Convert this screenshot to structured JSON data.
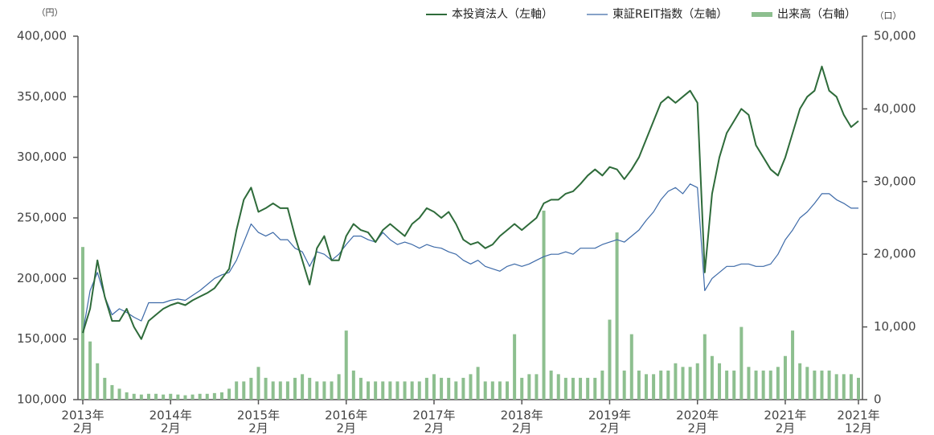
{
  "chart_data": {
    "type": "line",
    "y_unit": "（円）",
    "y2_unit": "（口）",
    "x": [
      "2013-02",
      "2013-03",
      "2013-04",
      "2013-05",
      "2013-06",
      "2013-07",
      "2013-08",
      "2013-09",
      "2013-10",
      "2013-11",
      "2013-12",
      "2014-01",
      "2014-02",
      "2014-03",
      "2014-04",
      "2014-05",
      "2014-06",
      "2014-07",
      "2014-08",
      "2014-09",
      "2014-10",
      "2014-11",
      "2014-12",
      "2015-01",
      "2015-02",
      "2015-03",
      "2015-04",
      "2015-05",
      "2015-06",
      "2015-07",
      "2015-08",
      "2015-09",
      "2015-10",
      "2015-11",
      "2015-12",
      "2016-01",
      "2016-02",
      "2016-03",
      "2016-04",
      "2016-05",
      "2016-06",
      "2016-07",
      "2016-08",
      "2016-09",
      "2016-10",
      "2016-11",
      "2016-12",
      "2017-01",
      "2017-02",
      "2017-03",
      "2017-04",
      "2017-05",
      "2017-06",
      "2017-07",
      "2017-08",
      "2017-09",
      "2017-10",
      "2017-11",
      "2017-12",
      "2018-01",
      "2018-02",
      "2018-03",
      "2018-04",
      "2018-05",
      "2018-06",
      "2018-07",
      "2018-08",
      "2018-09",
      "2018-10",
      "2018-11",
      "2018-12",
      "2019-01",
      "2019-02",
      "2019-03",
      "2019-04",
      "2019-05",
      "2019-06",
      "2019-07",
      "2019-08",
      "2019-09",
      "2019-10",
      "2019-11",
      "2019-12",
      "2020-01",
      "2020-02",
      "2020-03",
      "2020-04",
      "2020-05",
      "2020-06",
      "2020-07",
      "2020-08",
      "2020-09",
      "2020-10",
      "2020-11",
      "2020-12",
      "2021-01",
      "2021-02",
      "2021-03",
      "2021-04",
      "2021-05",
      "2021-06",
      "2021-07",
      "2021-08",
      "2021-09",
      "2021-10",
      "2021-11",
      "2021-12"
    ],
    "xlim": [
      "2013-02",
      "2021-12"
    ],
    "xticks": [
      {
        "value": "2013-02",
        "label": [
          "2013年",
          "2月"
        ]
      },
      {
        "value": "2014-02",
        "label": [
          "2014年",
          "2月"
        ]
      },
      {
        "value": "2015-02",
        "label": [
          "2015年",
          "2月"
        ]
      },
      {
        "value": "2016-02",
        "label": [
          "2016年",
          "2月"
        ]
      },
      {
        "value": "2017-02",
        "label": [
          "2017年",
          "2月"
        ]
      },
      {
        "value": "2018-02",
        "label": [
          "2018年",
          "2月"
        ]
      },
      {
        "value": "2019-02",
        "label": [
          "2019年",
          "2月"
        ]
      },
      {
        "value": "2020-02",
        "label": [
          "2020年",
          "2月"
        ]
      },
      {
        "value": "2021-02",
        "label": [
          "2021年",
          "2月"
        ]
      },
      {
        "value": "2021-12",
        "label": [
          "2021年",
          "12月"
        ]
      }
    ],
    "ylim": [
      100000,
      400000
    ],
    "yticks": [
      {
        "value": 100000,
        "label": "100,000"
      },
      {
        "value": 150000,
        "label": "150,000"
      },
      {
        "value": 200000,
        "label": "200,000"
      },
      {
        "value": 250000,
        "label": "250,000"
      },
      {
        "value": 300000,
        "label": "300,000"
      },
      {
        "value": 350000,
        "label": "350,000"
      },
      {
        "value": 400000,
        "label": "400,000"
      }
    ],
    "y2lim": [
      0,
      50000
    ],
    "y2ticks": [
      0,
      {
        "value": 10000,
        "label": "10,000"
      },
      {
        "value": 20000,
        "label": "20,000"
      },
      {
        "value": 30000,
        "label": "30,000"
      },
      {
        "value": 40000,
        "label": "40,000"
      },
      {
        "value": 50000,
        "label": "50,000"
      }
    ],
    "legend": "top-right",
    "series": [
      {
        "name": "本投資法人（左軸）",
        "color": "#2e6b3a",
        "type": "line",
        "values": [
          155000,
          175000,
          215000,
          185000,
          165000,
          165000,
          175000,
          160000,
          150000,
          165000,
          170000,
          175000,
          178000,
          180000,
          178000,
          182000,
          185000,
          188000,
          192000,
          200000,
          208000,
          240000,
          265000,
          275000,
          255000,
          258000,
          262000,
          258000,
          258000,
          235000,
          215000,
          195000,
          225000,
          235000,
          215000,
          215000,
          235000,
          245000,
          240000,
          238000,
          230000,
          240000,
          245000,
          240000,
          235000,
          245000,
          250000,
          258000,
          255000,
          250000,
          255000,
          245000,
          232000,
          228000,
          230000,
          225000,
          228000,
          235000,
          240000,
          245000,
          240000,
          245000,
          250000,
          262000,
          265000,
          265000,
          270000,
          272000,
          278000,
          285000,
          290000,
          285000,
          292000,
          290000,
          282000,
          290000,
          300000,
          315000,
          330000,
          345000,
          350000,
          345000,
          350000,
          355000,
          345000,
          205000,
          270000,
          300000,
          320000,
          330000,
          340000,
          335000,
          310000,
          300000,
          290000,
          285000,
          300000,
          320000,
          340000,
          350000,
          355000,
          375000,
          355000,
          350000,
          335000,
          325000,
          330000
        ]
      },
      {
        "name": "東証REIT指数（左軸）",
        "color": "#3d6aa8",
        "type": "line",
        "values": [
          155000,
          190000,
          205000,
          185000,
          170000,
          175000,
          172000,
          168000,
          165000,
          180000,
          180000,
          180000,
          182000,
          183000,
          182000,
          186000,
          190000,
          195000,
          200000,
          203000,
          205000,
          215000,
          230000,
          245000,
          238000,
          235000,
          238000,
          232000,
          232000,
          225000,
          222000,
          210000,
          222000,
          220000,
          215000,
          220000,
          228000,
          235000,
          235000,
          232000,
          230000,
          238000,
          232000,
          228000,
          230000,
          228000,
          225000,
          228000,
          226000,
          225000,
          222000,
          220000,
          215000,
          212000,
          215000,
          210000,
          208000,
          206000,
          210000,
          212000,
          210000,
          212000,
          215000,
          218000,
          220000,
          220000,
          222000,
          220000,
          225000,
          225000,
          225000,
          228000,
          230000,
          232000,
          230000,
          235000,
          240000,
          248000,
          255000,
          265000,
          272000,
          275000,
          270000,
          278000,
          275000,
          190000,
          200000,
          205000,
          210000,
          210000,
          212000,
          212000,
          210000,
          210000,
          212000,
          220000,
          232000,
          240000,
          250000,
          255000,
          262000,
          270000,
          270000,
          265000,
          262000,
          258000,
          258000
        ]
      },
      {
        "name": "出来高（右軸）",
        "color": "#8dbf8f",
        "type": "bar",
        "axis": "y2",
        "values": [
          21000,
          8000,
          5000,
          3000,
          2000,
          1500,
          1000,
          800,
          700,
          800,
          800,
          700,
          800,
          700,
          600,
          700,
          800,
          800,
          900,
          1000,
          1500,
          2500,
          2500,
          3000,
          4500,
          3000,
          2500,
          2500,
          2500,
          3000,
          3500,
          3000,
          2500,
          2500,
          2500,
          3500,
          9500,
          4000,
          3000,
          2500,
          2500,
          2500,
          2500,
          2500,
          2500,
          2500,
          2500,
          3000,
          3500,
          3000,
          3000,
          2500,
          3000,
          3500,
          4500,
          2500,
          2500,
          2500,
          2500,
          9000,
          3000,
          3500,
          3500,
          26000,
          4000,
          3500,
          3000,
          3000,
          3000,
          3000,
          3000,
          4000,
          11000,
          23000,
          4000,
          9000,
          4000,
          3500,
          3500,
          4000,
          4000,
          5000,
          4500,
          4500,
          5000,
          9000,
          6000,
          5000,
          4000,
          4000,
          10000,
          4500,
          4000,
          4000,
          4000,
          4500,
          6000,
          9500,
          5000,
          4500,
          4000,
          4000,
          4000,
          3500,
          3500,
          3500,
          3000
        ]
      }
    ]
  }
}
